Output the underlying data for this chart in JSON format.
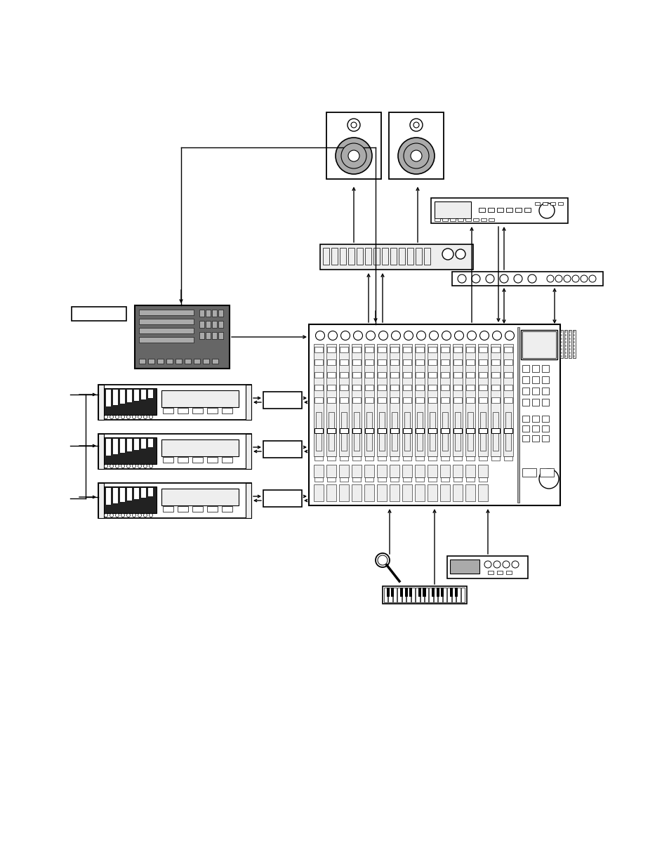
{
  "bg_color": "#ffffff",
  "lc": "#000000",
  "fc_white": "#ffffff",
  "fc_light": "#eeeeee",
  "fc_mid": "#aaaaaa",
  "fc_dark": "#666666",
  "fc_black": "#222222",
  "fig_width": 9.54,
  "fig_height": 12.35,
  "dpi": 100
}
